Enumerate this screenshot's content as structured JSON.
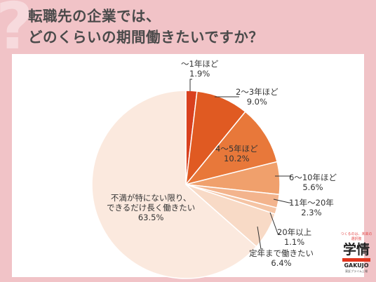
{
  "title": {
    "line1": "転職先の企業では、",
    "line2": "どのくらいの期間働きたいですか？"
  },
  "chart_data": {
    "type": "pie",
    "categories": [
      "〜1年ほど",
      "2〜3年ほど",
      "4〜5年ほど",
      "6〜10年ほど",
      "11年〜20年",
      "20年以上",
      "定年まで働きたい",
      "不満が特にない限り、できるだけ長く働きたい"
    ],
    "values": [
      1.9,
      9.0,
      10.2,
      5.6,
      2.3,
      1.1,
      6.4,
      63.5
    ],
    "value_labels": [
      "1.9%",
      "9.0%",
      "10.2%",
      "5.6%",
      "2.3%",
      "1.1%",
      "6.4%",
      "63.5%"
    ],
    "colors": [
      "#d9401e",
      "#e05a22",
      "#e8783a",
      "#f0a06c",
      "#f3b48d",
      "#f5c4a4",
      "#f8dac6",
      "#fbe9de"
    ],
    "start_angle": "top",
    "direction": "clockwise"
  },
  "logo": {
    "tagline": "つくるのは、未来の選択肢",
    "mark": "学情",
    "wordmark": "GAKUJO",
    "sub": "東証プライム上場"
  }
}
